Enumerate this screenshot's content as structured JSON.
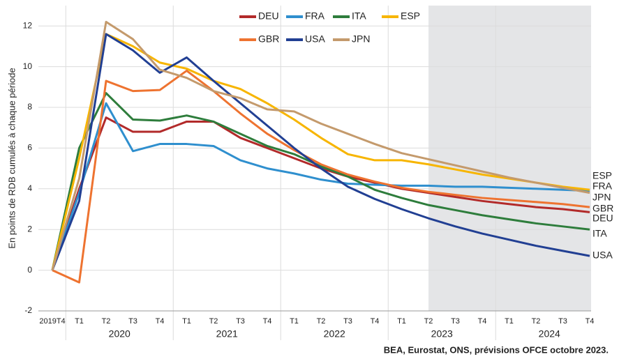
{
  "chart_data": {
    "type": "line",
    "y_label": "En points de RDB cumulés à chaque période",
    "source": "BEA, Eurostat, ONS, prévisions OFCE octobre 2023.",
    "categories": [
      "2019T4",
      "T1",
      "T2",
      "T3",
      "T4",
      "T1",
      "T2",
      "T3",
      "T4",
      "T1",
      "T2",
      "T3",
      "T4",
      "T1",
      "T2",
      "T3",
      "T4",
      "T1",
      "T2",
      "T3",
      "T4"
    ],
    "years": [
      "2020",
      "2021",
      "2022",
      "2023",
      "2024"
    ],
    "shade_from": 14,
    "ylim": [
      -2,
      13
    ],
    "yticks": [
      -2,
      0,
      2,
      4,
      6,
      8,
      10,
      12
    ],
    "grid": true,
    "legend": "top",
    "series": [
      {
        "name": "DEU",
        "color": "#b22a2a",
        "values": [
          0,
          4.0,
          7.5,
          6.8,
          6.8,
          7.3,
          7.3,
          6.5,
          6.0,
          5.5,
          5.0,
          4.6,
          4.3,
          4.0,
          3.8,
          3.6,
          3.4,
          3.25,
          3.1,
          3.0,
          2.85
        ]
      },
      {
        "name": "FRA",
        "color": "#2f8fce",
        "values": [
          0,
          3.8,
          8.2,
          5.85,
          6.2,
          6.2,
          6.1,
          5.4,
          5.0,
          4.75,
          4.45,
          4.25,
          4.2,
          4.15,
          4.15,
          4.1,
          4.1,
          4.05,
          4.0,
          3.95,
          3.9
        ]
      },
      {
        "name": "ITA",
        "color": "#2e7d3c",
        "values": [
          0,
          6.0,
          8.7,
          7.4,
          7.35,
          7.6,
          7.3,
          6.7,
          6.1,
          5.7,
          5.1,
          4.6,
          3.95,
          3.55,
          3.2,
          2.95,
          2.7,
          2.5,
          2.3,
          2.15,
          2.0
        ]
      },
      {
        "name": "ESP",
        "color": "#f7b500",
        "values": [
          0,
          5.5,
          11.6,
          11.0,
          10.2,
          9.9,
          9.3,
          8.9,
          8.2,
          7.4,
          6.5,
          5.7,
          5.4,
          5.4,
          5.2,
          4.95,
          4.7,
          4.5,
          4.3,
          4.1,
          3.95
        ]
      },
      {
        "name": "GBR",
        "color": "#ee7330",
        "values": [
          0,
          -0.6,
          9.3,
          8.8,
          8.85,
          9.8,
          8.8,
          7.7,
          6.7,
          5.9,
          5.2,
          4.7,
          4.35,
          4.05,
          3.85,
          3.7,
          3.55,
          3.45,
          3.35,
          3.25,
          3.1
        ]
      },
      {
        "name": "USA",
        "color": "#213f93",
        "values": [
          0,
          3.4,
          11.6,
          10.8,
          9.7,
          10.45,
          9.3,
          8.2,
          7.1,
          6.0,
          5.0,
          4.1,
          3.5,
          3.0,
          2.55,
          2.15,
          1.8,
          1.5,
          1.2,
          0.95,
          0.7
        ]
      },
      {
        "name": "JPN",
        "color": "#c49a6c",
        "values": [
          0,
          4.5,
          12.2,
          11.35,
          9.85,
          9.45,
          8.8,
          8.45,
          7.9,
          7.8,
          7.2,
          6.7,
          6.2,
          5.75,
          5.45,
          5.15,
          4.85,
          4.55,
          4.3,
          4.05,
          3.8
        ]
      }
    ]
  }
}
